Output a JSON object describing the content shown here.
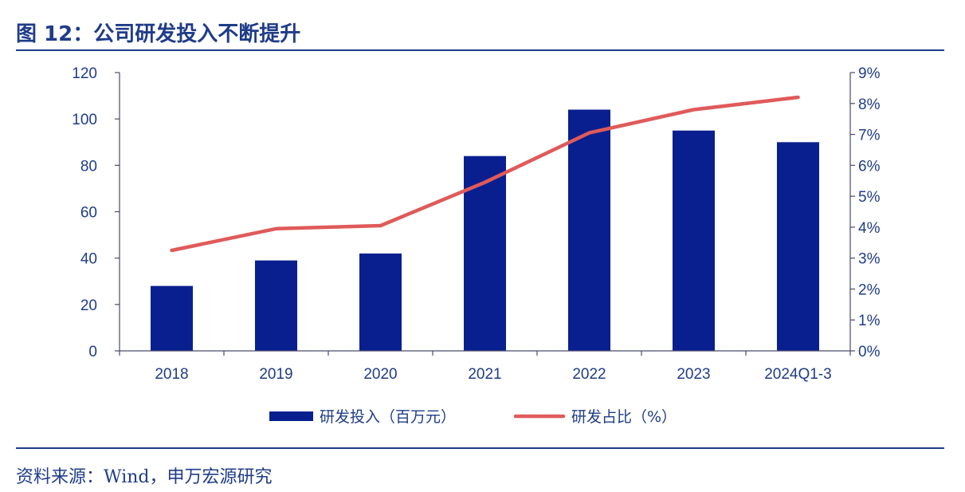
{
  "header": {
    "title": "图 12：公司研发投入不断提升"
  },
  "footer": {
    "source": "资料来源：Wind，申万宏源研究"
  },
  "colors": {
    "bar": "#0a1f8f",
    "line": "#e05a5a",
    "text": "#1f3c88",
    "axis": "#4a4a6a"
  },
  "chart_data": {
    "type": "bar",
    "categories": [
      "2018",
      "2019",
      "2020",
      "2021",
      "2022",
      "2023",
      "2024Q1-3"
    ],
    "series": [
      {
        "name": "研发投入（百万元）",
        "type": "bar",
        "axis": "left",
        "values": [
          28,
          39,
          42,
          84,
          104,
          95,
          90
        ]
      },
      {
        "name": "研发占比（%）",
        "type": "line",
        "axis": "right",
        "values": [
          3.25,
          3.95,
          4.05,
          5.45,
          7.05,
          7.8,
          8.2
        ]
      }
    ],
    "ylim": [
      0,
      120
    ],
    "yticks": [
      "0",
      "20",
      "40",
      "60",
      "80",
      "100",
      "120"
    ],
    "y2lim": [
      0,
      9
    ],
    "y2ticks": [
      "0%",
      "1%",
      "2%",
      "3%",
      "4%",
      "5%",
      "6%",
      "7%",
      "8%",
      "9%"
    ],
    "legend_position": "bottom-center",
    "grid": false
  }
}
